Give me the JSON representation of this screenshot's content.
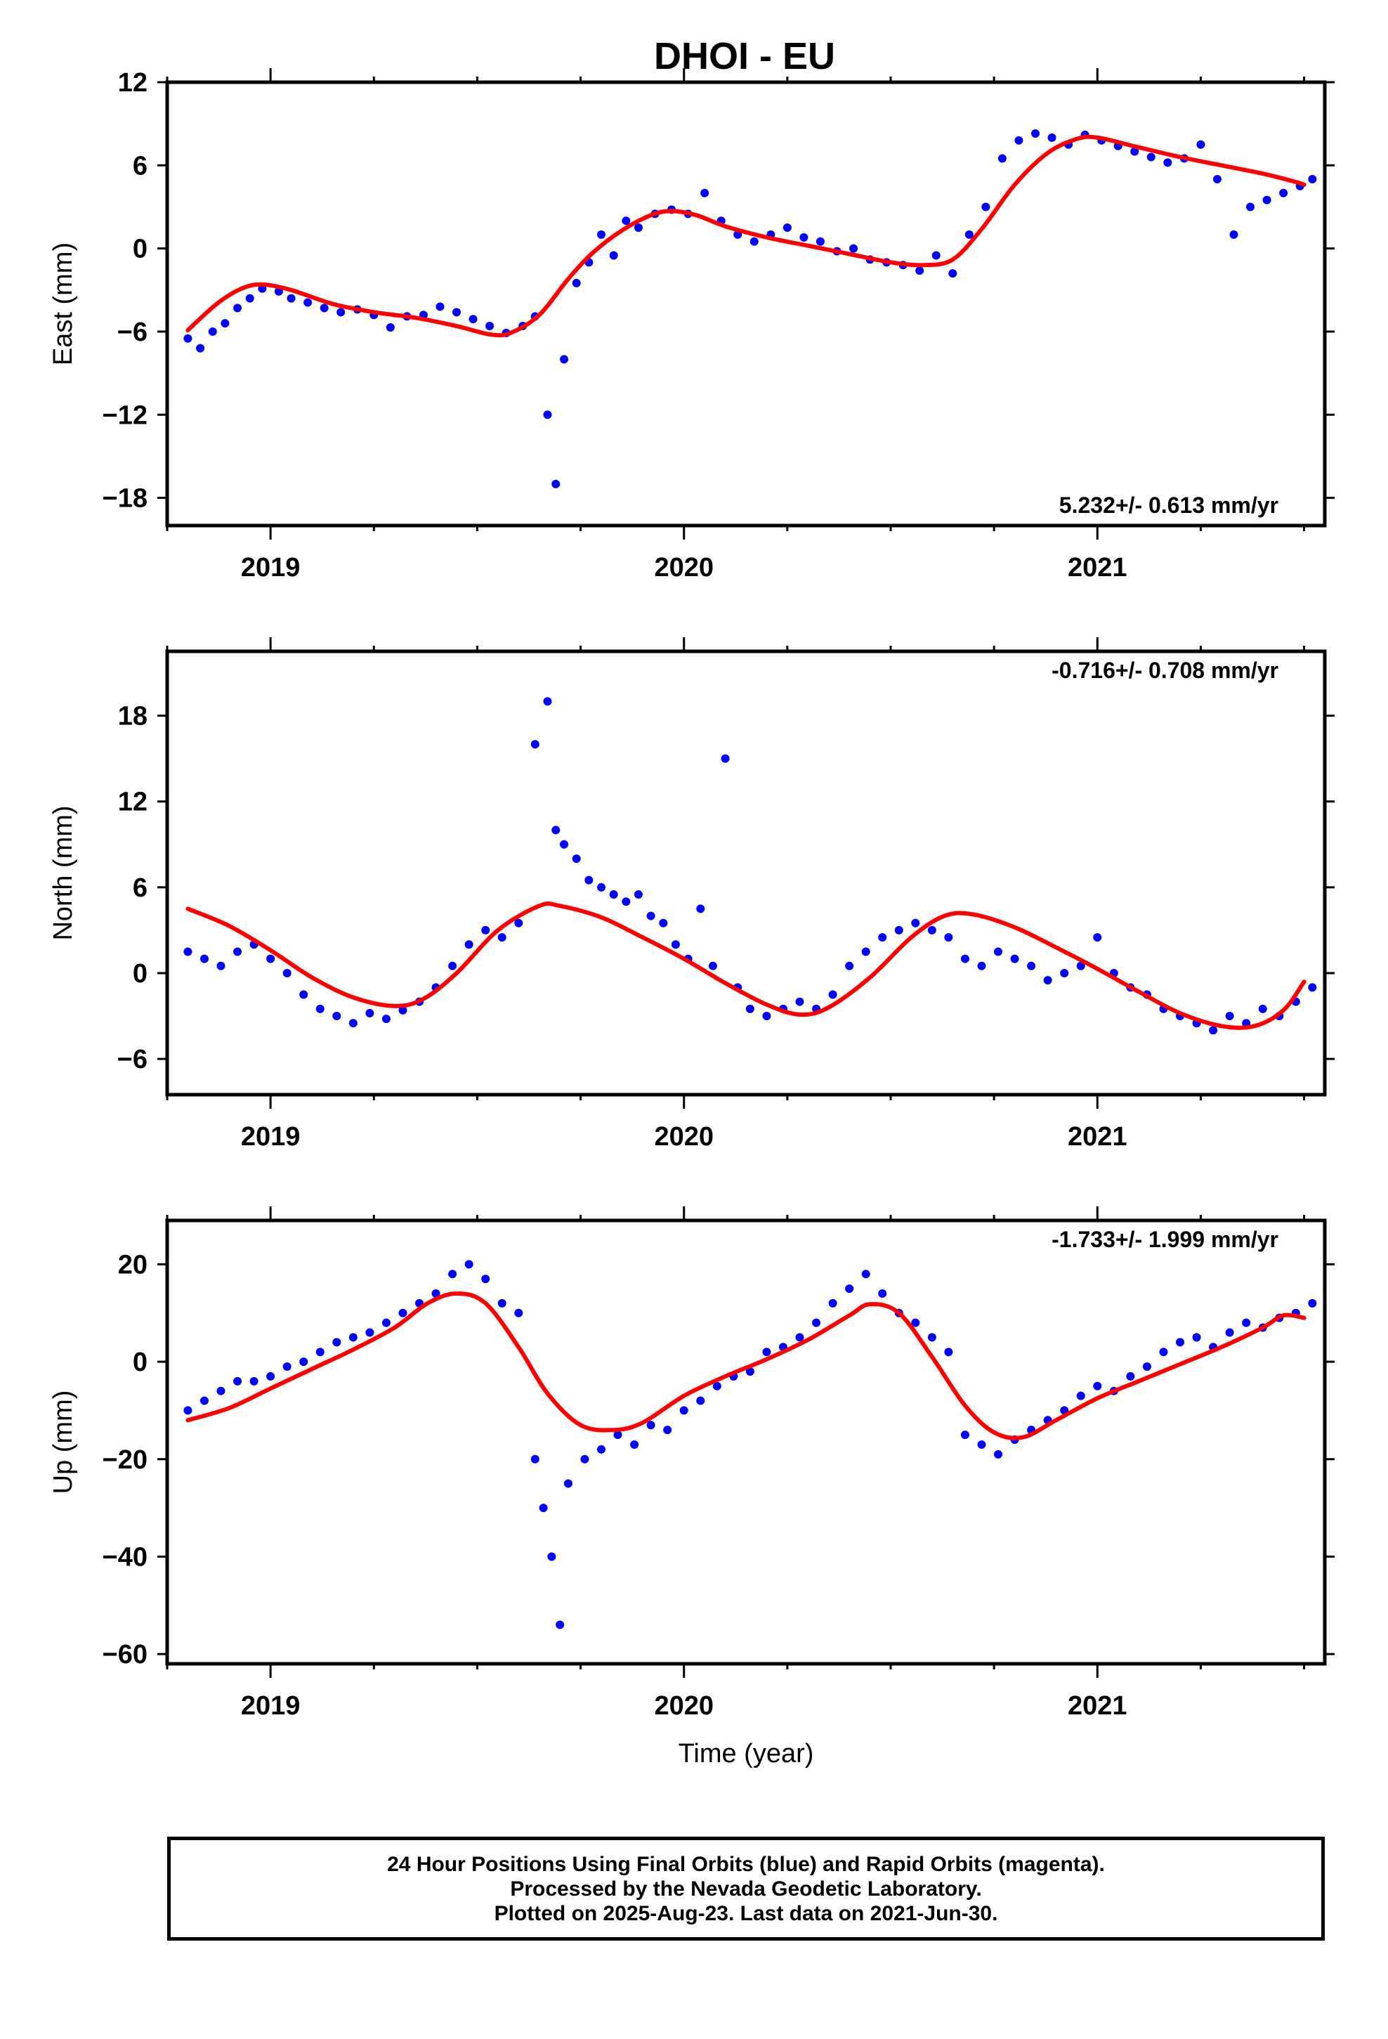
{
  "title": "DHOI - EU",
  "footer": {
    "line1": "24 Hour Positions Using Final Orbits (blue) and Rapid Orbits (magenta).",
    "line2": "Processed by the Nevada Geodetic Laboratory.",
    "line3": "Plotted on 2025-Aug-23. Last data on 2021-Jun-30."
  },
  "colors": {
    "points": "#0000ff",
    "fit": "#ff0000",
    "frame": "#000000"
  },
  "chart_data": [
    {
      "type": "scatter",
      "title": "DHOI - EU",
      "xlabel": "",
      "ylabel": "East (mm)",
      "xlim": [
        2018.75,
        2021.55
      ],
      "ylim": [
        -20,
        12
      ],
      "xticks": [
        2019,
        2020,
        2021
      ],
      "yticks": [
        -18,
        -12,
        -6,
        0,
        6,
        12
      ],
      "annotation": "5.232+/- 0.613 mm/yr",
      "annotation_position": "bottom-right",
      "grid": false,
      "series": [
        {
          "role": "observations",
          "marker": "dot",
          "color": "#0000ff",
          "x": [
            2018.8,
            2018.83,
            2018.86,
            2018.89,
            2018.92,
            2018.95,
            2018.98,
            2019.02,
            2019.05,
            2019.09,
            2019.13,
            2019.17,
            2019.21,
            2019.25,
            2019.29,
            2019.33,
            2019.37,
            2019.41,
            2019.45,
            2019.49,
            2019.53,
            2019.57,
            2019.61,
            2019.64,
            2019.67,
            2019.69,
            2019.71,
            2019.74,
            2019.77,
            2019.8,
            2019.83,
            2019.86,
            2019.89,
            2019.93,
            2019.97,
            2020.01,
            2020.05,
            2020.09,
            2020.13,
            2020.17,
            2020.21,
            2020.25,
            2020.29,
            2020.33,
            2020.37,
            2020.41,
            2020.45,
            2020.49,
            2020.53,
            2020.57,
            2020.61,
            2020.65,
            2020.69,
            2020.73,
            2020.77,
            2020.81,
            2020.85,
            2020.89,
            2020.93,
            2020.97,
            2021.01,
            2021.05,
            2021.09,
            2021.13,
            2021.17,
            2021.21,
            2021.25,
            2021.29,
            2021.33,
            2021.37,
            2021.41,
            2021.45,
            2021.49,
            2021.52
          ],
          "y": [
            -6.5,
            -7.2,
            -6.0,
            -5.4,
            -4.3,
            -3.6,
            -2.9,
            -3.1,
            -3.6,
            -3.9,
            -4.3,
            -4.6,
            -4.4,
            -4.8,
            -5.7,
            -4.9,
            -4.8,
            -4.2,
            -4.6,
            -5.1,
            -5.6,
            -6.1,
            -5.6,
            -4.9,
            -12.0,
            -17.0,
            -8.0,
            -2.5,
            -1.0,
            1.0,
            -0.5,
            2.0,
            1.5,
            2.5,
            2.8,
            2.5,
            4.0,
            2.0,
            1.0,
            0.5,
            1.0,
            1.5,
            0.8,
            0.5,
            -0.2,
            0.0,
            -0.8,
            -1.0,
            -1.2,
            -1.6,
            -0.5,
            -1.8,
            1.0,
            3.0,
            6.5,
            7.8,
            8.3,
            8.0,
            7.5,
            8.2,
            7.8,
            7.4,
            7.0,
            6.6,
            6.2,
            6.5,
            7.5,
            5.0,
            1.0,
            3.0,
            3.5,
            4.0,
            4.5,
            5.0
          ]
        },
        {
          "role": "model-fit",
          "line": "smooth",
          "color": "#ff0000",
          "x": [
            2018.8,
            2018.87,
            2018.93,
            2018.98,
            2019.05,
            2019.15,
            2019.25,
            2019.35,
            2019.45,
            2019.53,
            2019.58,
            2019.65,
            2019.72,
            2019.78,
            2019.85,
            2019.92,
            2019.97,
            2020.03,
            2020.1,
            2020.2,
            2020.3,
            2020.4,
            2020.5,
            2020.58,
            2020.65,
            2020.72,
            2020.8,
            2020.88,
            2020.95,
            2021.0,
            2021.1,
            2021.2,
            2021.3,
            2021.4,
            2021.48,
            2021.5
          ],
          "y": [
            -5.9,
            -4.0,
            -2.9,
            -2.6,
            -3.0,
            -4.0,
            -4.6,
            -5.0,
            -5.6,
            -6.2,
            -6.1,
            -4.8,
            -2.2,
            -0.3,
            1.3,
            2.4,
            2.7,
            2.4,
            1.6,
            0.8,
            0.2,
            -0.4,
            -1.0,
            -1.2,
            -0.8,
            1.4,
            4.6,
            6.9,
            7.9,
            8.0,
            7.3,
            6.6,
            6.0,
            5.4,
            4.8,
            4.6
          ]
        }
      ]
    },
    {
      "type": "scatter",
      "title": "",
      "xlabel": "",
      "ylabel": "North (mm)",
      "xlim": [
        2018.75,
        2021.55
      ],
      "ylim": [
        -8.5,
        22.5
      ],
      "xticks": [
        2019,
        2020,
        2021
      ],
      "yticks": [
        -6,
        0,
        6,
        12,
        18
      ],
      "annotation": "-0.716+/- 0.708 mm/yr",
      "annotation_position": "top-right",
      "grid": false,
      "series": [
        {
          "role": "observations",
          "marker": "dot",
          "color": "#0000ff",
          "x": [
            2018.8,
            2018.84,
            2018.88,
            2018.92,
            2018.96,
            2019.0,
            2019.04,
            2019.08,
            2019.12,
            2019.16,
            2019.2,
            2019.24,
            2019.28,
            2019.32,
            2019.36,
            2019.4,
            2019.44,
            2019.48,
            2019.52,
            2019.56,
            2019.6,
            2019.64,
            2019.67,
            2019.69,
            2019.71,
            2019.74,
            2019.77,
            2019.8,
            2019.83,
            2019.86,
            2019.89,
            2019.92,
            2019.95,
            2019.98,
            2020.01,
            2020.04,
            2020.07,
            2020.1,
            2020.13,
            2020.16,
            2020.2,
            2020.24,
            2020.28,
            2020.32,
            2020.36,
            2020.4,
            2020.44,
            2020.48,
            2020.52,
            2020.56,
            2020.6,
            2020.64,
            2020.68,
            2020.72,
            2020.76,
            2020.8,
            2020.84,
            2020.88,
            2020.92,
            2020.96,
            2021.0,
            2021.04,
            2021.08,
            2021.12,
            2021.16,
            2021.2,
            2021.24,
            2021.28,
            2021.32,
            2021.36,
            2021.4,
            2021.44,
            2021.48,
            2021.52
          ],
          "y": [
            1.5,
            1.0,
            0.5,
            1.5,
            2.0,
            1.0,
            0.0,
            -1.5,
            -2.5,
            -3.0,
            -3.5,
            -2.8,
            -3.2,
            -2.6,
            -2.0,
            -1.0,
            0.5,
            2.0,
            3.0,
            2.5,
            3.5,
            16.0,
            19.0,
            10.0,
            9.0,
            8.0,
            6.5,
            6.0,
            5.5,
            5.0,
            5.5,
            4.0,
            3.5,
            2.0,
            1.0,
            4.5,
            0.5,
            15.0,
            -1.0,
            -2.5,
            -3.0,
            -2.5,
            -2.0,
            -2.5,
            -1.5,
            0.5,
            1.5,
            2.5,
            3.0,
            3.5,
            3.0,
            2.5,
            1.0,
            0.5,
            1.5,
            1.0,
            0.5,
            -0.5,
            0.0,
            0.5,
            2.5,
            0.0,
            -1.0,
            -1.5,
            -2.5,
            -3.0,
            -3.5,
            -4.0,
            -3.0,
            -3.5,
            -2.5,
            -3.0,
            -2.0,
            -1.0
          ]
        },
        {
          "role": "model-fit",
          "line": "smooth",
          "color": "#ff0000",
          "x": [
            2018.8,
            2018.9,
            2019.0,
            2019.1,
            2019.2,
            2019.3,
            2019.37,
            2019.45,
            2019.55,
            2019.65,
            2019.7,
            2019.8,
            2019.9,
            2020.0,
            2020.1,
            2020.2,
            2020.28,
            2020.35,
            2020.45,
            2020.55,
            2020.63,
            2020.7,
            2020.8,
            2020.9,
            2021.0,
            2021.1,
            2021.2,
            2021.3,
            2021.38,
            2021.45,
            2021.5
          ],
          "y": [
            4.5,
            3.3,
            1.6,
            -0.3,
            -1.7,
            -2.3,
            -1.8,
            0.0,
            3.0,
            4.7,
            4.7,
            3.9,
            2.5,
            1.0,
            -0.7,
            -2.2,
            -2.9,
            -2.4,
            -0.3,
            2.5,
            4.0,
            4.1,
            3.2,
            1.8,
            0.3,
            -1.3,
            -2.8,
            -3.7,
            -3.7,
            -2.6,
            -0.6
          ]
        }
      ]
    },
    {
      "type": "scatter",
      "title": "",
      "xlabel": "Time (year)",
      "ylabel": "Up (mm)",
      "xlim": [
        2018.75,
        2021.55
      ],
      "ylim": [
        -62,
        29
      ],
      "xticks": [
        2019,
        2020,
        2021
      ],
      "yticks": [
        -60,
        -40,
        -20,
        0,
        20
      ],
      "annotation": "-1.733+/- 1.999 mm/yr",
      "annotation_position": "top-right",
      "grid": false,
      "series": [
        {
          "role": "observations",
          "marker": "dot",
          "color": "#0000ff",
          "x": [
            2018.8,
            2018.84,
            2018.88,
            2018.92,
            2018.96,
            2019.0,
            2019.04,
            2019.08,
            2019.12,
            2019.16,
            2019.2,
            2019.24,
            2019.28,
            2019.32,
            2019.36,
            2019.4,
            2019.44,
            2019.48,
            2019.52,
            2019.56,
            2019.6,
            2019.64,
            2019.66,
            2019.68,
            2019.7,
            2019.72,
            2019.76,
            2019.8,
            2019.84,
            2019.88,
            2019.92,
            2019.96,
            2020.0,
            2020.04,
            2020.08,
            2020.12,
            2020.16,
            2020.2,
            2020.24,
            2020.28,
            2020.32,
            2020.36,
            2020.4,
            2020.44,
            2020.48,
            2020.52,
            2020.56,
            2020.6,
            2020.64,
            2020.68,
            2020.72,
            2020.76,
            2020.8,
            2020.84,
            2020.88,
            2020.92,
            2020.96,
            2021.0,
            2021.04,
            2021.08,
            2021.12,
            2021.16,
            2021.2,
            2021.24,
            2021.28,
            2021.32,
            2021.36,
            2021.4,
            2021.44,
            2021.48,
            2021.52
          ],
          "y": [
            -10.0,
            -8.0,
            -6.0,
            -4.0,
            -4.0,
            -3.0,
            -1.0,
            0.0,
            2.0,
            4.0,
            5.0,
            6.0,
            8.0,
            10.0,
            12.0,
            14.0,
            18.0,
            20.0,
            17.0,
            12.0,
            10.0,
            -20.0,
            -30.0,
            -40.0,
            -54.0,
            -25.0,
            -20.0,
            -18.0,
            -15.0,
            -17.0,
            -13.0,
            -14.0,
            -10.0,
            -8.0,
            -5.0,
            -3.0,
            -2.0,
            2.0,
            3.0,
            5.0,
            8.0,
            12.0,
            15.0,
            18.0,
            14.0,
            10.0,
            8.0,
            5.0,
            2.0,
            -15.0,
            -17.0,
            -19.0,
            -16.0,
            -14.0,
            -12.0,
            -10.0,
            -7.0,
            -5.0,
            -6.0,
            -3.0,
            -1.0,
            2.0,
            4.0,
            5.0,
            3.0,
            6.0,
            8.0,
            7.0,
            9.0,
            10.0,
            12.0
          ]
        },
        {
          "role": "model-fit",
          "line": "smooth",
          "color": "#ff0000",
          "x": [
            2018.8,
            2018.9,
            2019.0,
            2019.1,
            2019.2,
            2019.3,
            2019.38,
            2019.45,
            2019.52,
            2019.6,
            2019.67,
            2019.75,
            2019.83,
            2019.9,
            2020.0,
            2020.1,
            2020.2,
            2020.3,
            2020.4,
            2020.45,
            2020.52,
            2020.6,
            2020.68,
            2020.75,
            2020.82,
            2020.9,
            2021.0,
            2021.1,
            2021.2,
            2021.3,
            2021.4,
            2021.45,
            2021.5
          ],
          "y": [
            -12.0,
            -9.5,
            -5.5,
            -1.5,
            2.5,
            7.0,
            12.0,
            14.0,
            12.0,
            3.0,
            -6.5,
            -13.0,
            -14.0,
            -12.5,
            -7.0,
            -3.0,
            0.5,
            4.5,
            9.5,
            11.8,
            10.0,
            1.0,
            -9.0,
            -14.5,
            -15.5,
            -12.0,
            -7.5,
            -4.0,
            -0.5,
            3.0,
            7.0,
            9.5,
            9.0
          ]
        }
      ]
    }
  ]
}
